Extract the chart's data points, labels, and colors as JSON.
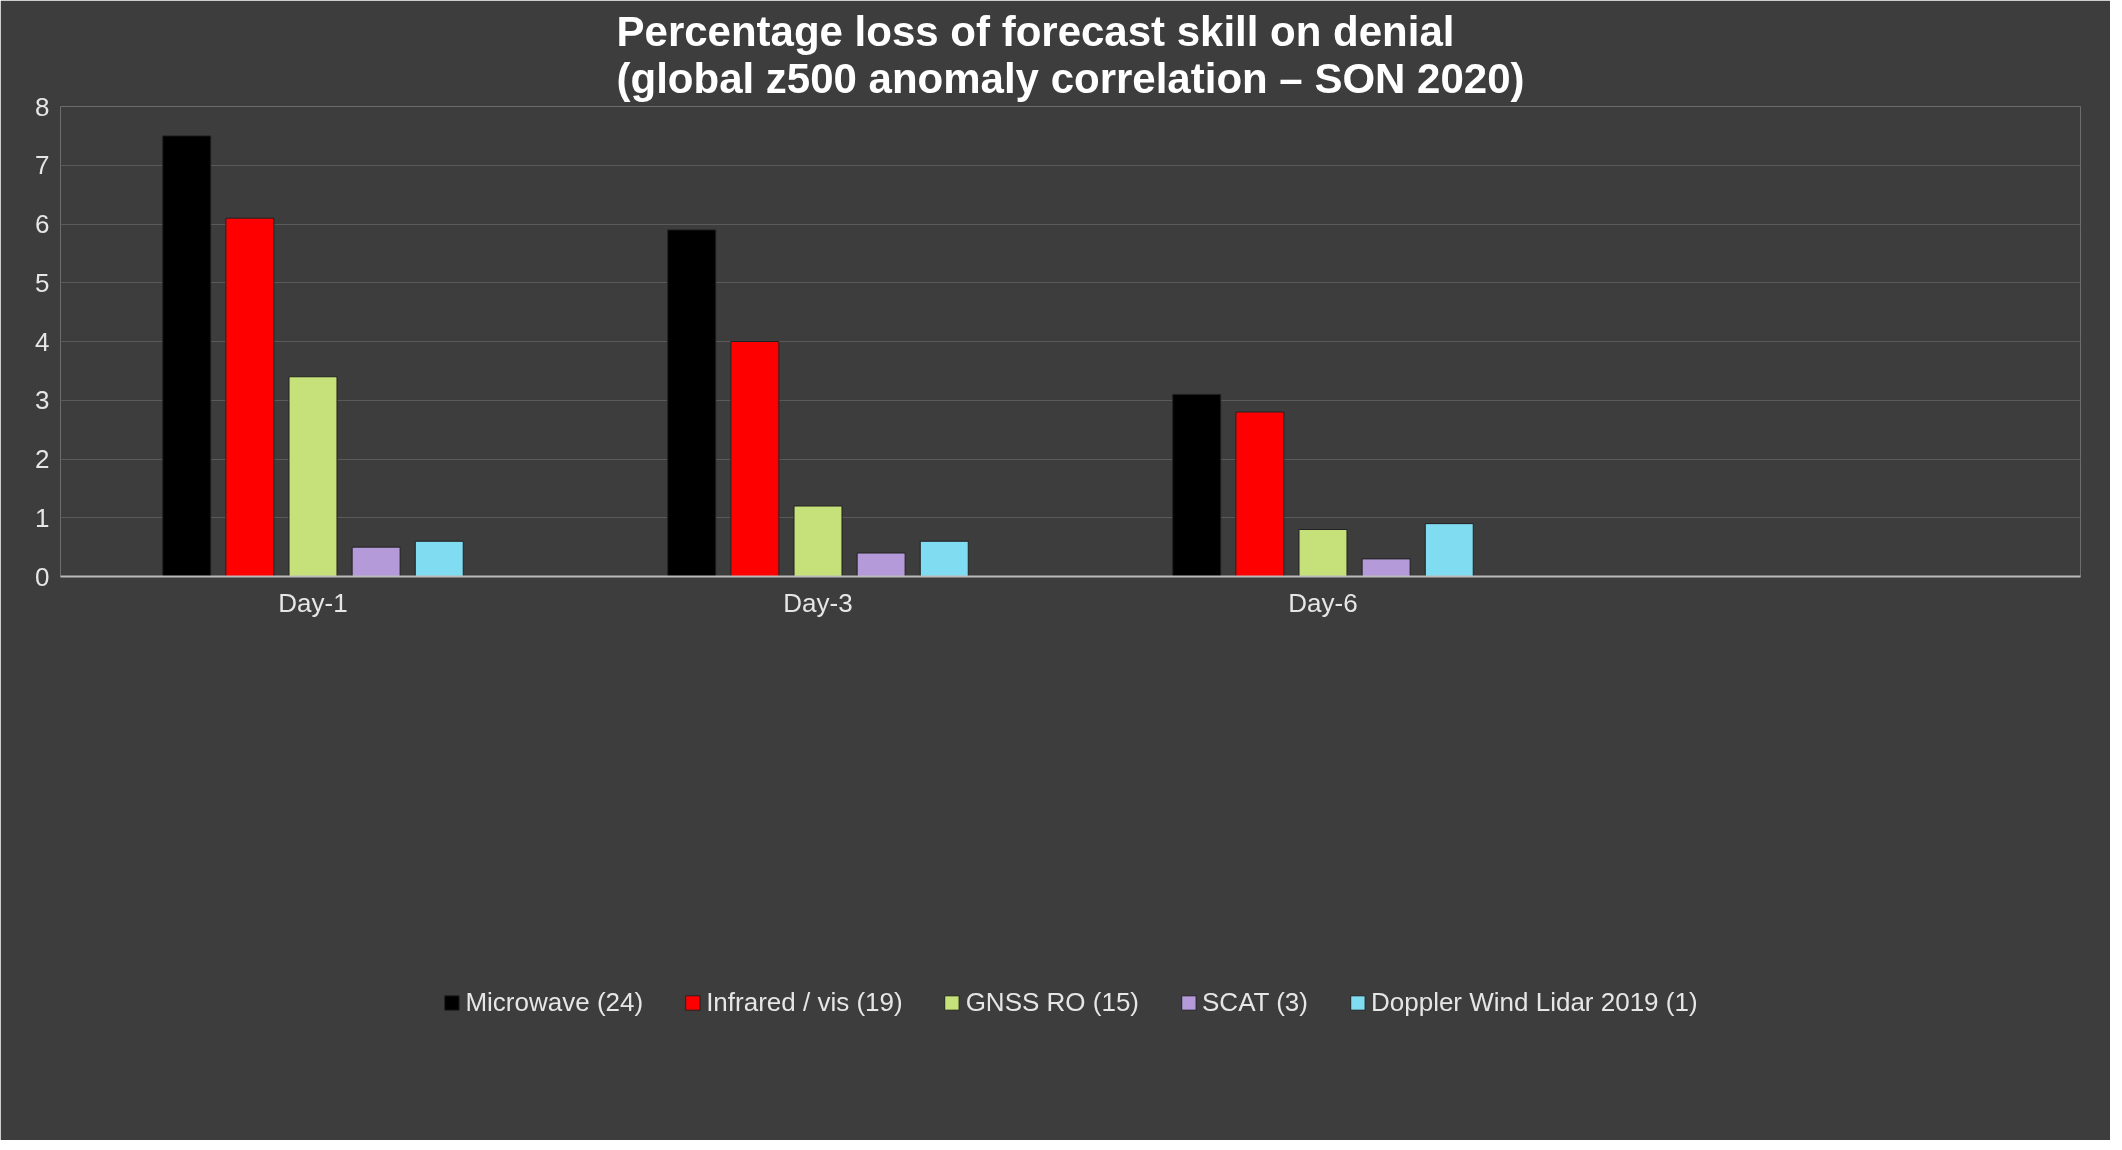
{
  "chart_data": {
    "type": "bar",
    "title": "Percentage loss of forecast skill on denial\n(global z500 anomaly correlation – SON 2020)",
    "categories": [
      "Day-1",
      "Day-3",
      "Day-6",
      null
    ],
    "series": [
      {
        "name": "Microwave (24)",
        "color": "#000000",
        "values": [
          7.5,
          5.9,
          3.1,
          null
        ]
      },
      {
        "name": "Infrared / vis (19)",
        "color": "#ff0000",
        "values": [
          6.1,
          4.0,
          2.8,
          null
        ]
      },
      {
        "name": "GNSS RO (15)",
        "color": "#c6e07a",
        "values": [
          3.4,
          1.2,
          0.8,
          null
        ]
      },
      {
        "name": "SCAT (3)",
        "color": "#b49ad8",
        "values": [
          0.5,
          0.4,
          0.3,
          null
        ]
      },
      {
        "name": "Doppler Wind Lidar 2019 (1)",
        "color": "#80dcf0",
        "values": [
          0.6,
          0.6,
          0.9,
          null
        ]
      }
    ],
    "ylim": [
      0,
      8
    ],
    "yticks": [
      0,
      1,
      2,
      3,
      4,
      5,
      6,
      7,
      8
    ],
    "grid": "y",
    "legend": "bottom"
  }
}
